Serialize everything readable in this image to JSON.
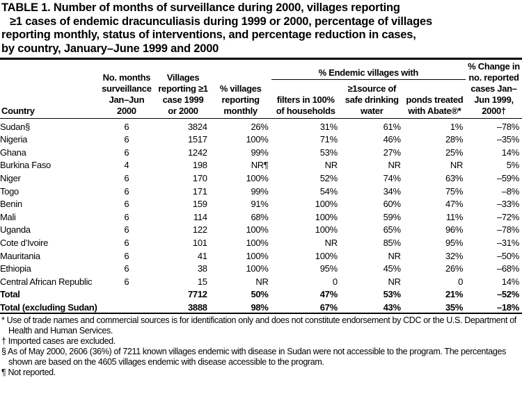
{
  "title": {
    "lines": [
      "TABLE 1. Number of months of surveillance  during 2000, villages reporting",
      "≥1 cases of endemic dracunculiasis during 1999 or 2000, percentage of villages",
      "reporting monthly, status of interventions, and percentage reduction in cases,",
      "by country, January–June  1999 and 2000"
    ]
  },
  "table": {
    "group_header": "% Endemic villages with",
    "headers": [
      "Country",
      "No. months surveillance Jan–Jun 2000",
      "Villages reporting ≥1 case 1999 or 2000",
      "% villages reporting monthly",
      "filters in 100% of households",
      "≥1source of safe drinking water",
      "ponds treated with Abate®*",
      "% Change in no. reported cases Jan–Jun 1999, 2000†"
    ],
    "rows": [
      [
        "Sudan§",
        "6",
        "3824",
        "26%",
        "31%",
        "61%",
        "1%",
        "–78%"
      ],
      [
        "Nigeria",
        "6",
        "1517",
        "100%",
        "71%",
        "46%",
        "28%",
        "–35%"
      ],
      [
        "Ghana",
        "6",
        "1242",
        "99%",
        "53%",
        "27%",
        "25%",
        "14%"
      ],
      [
        "Burkina Faso",
        "4",
        "198",
        "NR¶",
        "NR",
        "NR",
        "NR",
        "5%"
      ],
      [
        "Niger",
        "6",
        "170",
        "100%",
        "52%",
        "74%",
        "63%",
        "–59%"
      ],
      [
        "Togo",
        "6",
        "171",
        "99%",
        "54%",
        "34%",
        "75%",
        "–8%"
      ],
      [
        "Benin",
        "6",
        "159",
        "91%",
        "100%",
        "60%",
        "47%",
        "–33%"
      ],
      [
        "Mali",
        "6",
        "114",
        "68%",
        "100%",
        "59%",
        "11%",
        "–72%"
      ],
      [
        "Uganda",
        "6",
        "122",
        "100%",
        "100%",
        "65%",
        "96%",
        "–78%"
      ],
      [
        "Cote d’Ivoire",
        "6",
        "101",
        "100%",
        "NR",
        "85%",
        "95%",
        "–31%"
      ],
      [
        "Mauritania",
        "6",
        "41",
        "100%",
        "100%",
        "NR",
        "32%",
        "–50%"
      ],
      [
        "Ethiopia",
        "6",
        "38",
        "100%",
        "95%",
        "45%",
        "26%",
        "–68%"
      ],
      [
        "Central African Republic",
        "6",
        "15",
        "NR",
        "0",
        "NR",
        "0",
        "14%"
      ],
      [
        "Total",
        null,
        "7712",
        "50%",
        "47%",
        "53%",
        "21%",
        "–52%"
      ],
      [
        "Total (excluding Sudan)",
        null,
        "3888",
        "98%",
        "67%",
        "43%",
        "35%",
        "–18%"
      ]
    ]
  },
  "footnotes": [
    "* Use of trade names and commercial sources is for identification only and does not constitute endorsement by CDC or the U.S. Department of Health and Human Services.",
    "† Imported cases are excluded.",
    "§ As of May 2000, 2606 (36%) of 7211 known villages endemic with disease in Sudan were not accessible to the program. The percentages shown are based on the 4605 villages endemic with disease accessible to the program.",
    "¶ Not reported."
  ]
}
